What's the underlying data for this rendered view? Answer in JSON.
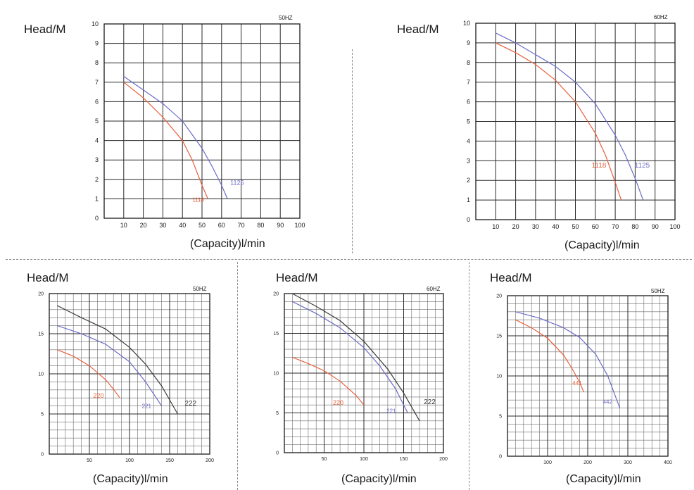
{
  "chart_data": [
    {
      "type": "line",
      "freq_label": "50HZ",
      "ylabel": "Head/M",
      "xlabel": "(Capacity)l/min",
      "xlim": [
        0,
        100
      ],
      "ylim": [
        0,
        10
      ],
      "xticks": [
        10,
        20,
        30,
        40,
        50,
        60,
        70,
        80,
        90,
        100
      ],
      "yticks": [
        0,
        1,
        2,
        3,
        4,
        5,
        6,
        7,
        8,
        9,
        10
      ],
      "grid": "on",
      "series": [
        {
          "name": "1118",
          "color": "#e8603c",
          "x": [
            10,
            20,
            30,
            40,
            45,
            50,
            53
          ],
          "y": [
            7.0,
            6.2,
            5.2,
            4.0,
            3.0,
            1.7,
            1.0
          ]
        },
        {
          "name": "1125",
          "color": "#6b6bc8",
          "x": [
            10,
            20,
            30,
            40,
            50,
            55,
            60,
            63
          ],
          "y": [
            7.3,
            6.6,
            5.9,
            5.0,
            3.6,
            2.7,
            1.7,
            1.0
          ]
        }
      ]
    },
    {
      "type": "line",
      "freq_label": "60HZ",
      "ylabel": "Head/M",
      "xlabel": "(Capacity)l/min",
      "xlim": [
        0,
        100
      ],
      "ylim": [
        0,
        10
      ],
      "xticks": [
        10,
        20,
        30,
        40,
        50,
        60,
        70,
        80,
        90,
        100
      ],
      "yticks": [
        0,
        1,
        2,
        3,
        4,
        5,
        6,
        7,
        8,
        9,
        10
      ],
      "grid": "on",
      "series": [
        {
          "name": "1118",
          "color": "#e8603c",
          "x": [
            10,
            20,
            30,
            40,
            50,
            60,
            65,
            70,
            73
          ],
          "y": [
            9.0,
            8.5,
            7.9,
            7.1,
            6.0,
            4.4,
            3.3,
            1.9,
            1.0
          ]
        },
        {
          "name": "1125",
          "color": "#6b6bc8",
          "x": [
            10,
            20,
            30,
            40,
            50,
            60,
            70,
            75,
            80,
            84
          ],
          "y": [
            9.5,
            9.0,
            8.4,
            7.8,
            7.0,
            5.9,
            4.3,
            3.3,
            2.1,
            1.0
          ]
        }
      ]
    },
    {
      "type": "line",
      "freq_label": "50HZ",
      "ylabel": "Head/M",
      "xlabel": "(Capacity)l/min",
      "xlim": [
        0,
        200
      ],
      "ylim": [
        0,
        20
      ],
      "xticks": [
        50,
        100,
        150,
        200
      ],
      "yticks": [
        0,
        5,
        10,
        15,
        20
      ],
      "grid": "on",
      "series": [
        {
          "name": "220",
          "color": "#e8603c",
          "x": [
            10,
            30,
            50,
            70,
            80,
            88
          ],
          "y": [
            13.0,
            12.2,
            11.0,
            9.3,
            8.1,
            7.0
          ]
        },
        {
          "name": "221",
          "color": "#6b6bc8",
          "x": [
            10,
            40,
            70,
            100,
            120,
            140
          ],
          "y": [
            16.0,
            15.0,
            13.7,
            11.5,
            9.0,
            6.0
          ]
        },
        {
          "name": "222",
          "color": "#3a3a3a",
          "x": [
            10,
            40,
            70,
            100,
            120,
            140,
            160
          ],
          "y": [
            18.5,
            17.0,
            15.6,
            13.3,
            11.2,
            8.5,
            5.0
          ]
        }
      ]
    },
    {
      "type": "line",
      "freq_label": "60HZ",
      "ylabel": "Head/M",
      "xlabel": "(Capacity)l/min",
      "xlim": [
        0,
        200
      ],
      "ylim": [
        0,
        20
      ],
      "xticks": [
        50,
        100,
        150,
        200
      ],
      "yticks": [
        0,
        5,
        10,
        15,
        20
      ],
      "grid": "on",
      "series": [
        {
          "name": "220",
          "color": "#e8603c",
          "x": [
            10,
            30,
            50,
            70,
            90,
            100
          ],
          "y": [
            12.0,
            11.2,
            10.3,
            9.0,
            7.2,
            6.0
          ]
        },
        {
          "name": "221",
          "color": "#6b6bc8",
          "x": [
            10,
            40,
            70,
            100,
            120,
            140,
            155
          ],
          "y": [
            19.0,
            17.5,
            15.7,
            13.2,
            10.9,
            8.0,
            5.0
          ]
        },
        {
          "name": "222",
          "color": "#3a3a3a",
          "x": [
            10,
            40,
            70,
            100,
            130,
            150,
            170
          ],
          "y": [
            20.0,
            18.4,
            16.6,
            14.0,
            10.5,
            7.5,
            4.0
          ]
        }
      ]
    },
    {
      "type": "line",
      "freq_label": "50HZ",
      "ylabel": "Head/M",
      "xlabel": "(Capacity)l/min",
      "xlim": [
        0,
        400
      ],
      "ylim": [
        0,
        20
      ],
      "xticks": [
        100,
        200,
        300,
        400
      ],
      "yticks": [
        0,
        5,
        10,
        15,
        20
      ],
      "grid": "on",
      "series": [
        {
          "name": "441",
          "color": "#e8603c",
          "x": [
            20,
            60,
            100,
            140,
            160,
            180,
            190
          ],
          "y": [
            17.0,
            16.0,
            14.7,
            12.6,
            11.0,
            9.2,
            8.0
          ]
        },
        {
          "name": "442",
          "color": "#6b6bc8",
          "x": [
            20,
            80,
            140,
            180,
            220,
            250,
            280
          ],
          "y": [
            18.0,
            17.2,
            16.0,
            14.8,
            12.7,
            10.0,
            6.0
          ]
        }
      ]
    }
  ]
}
